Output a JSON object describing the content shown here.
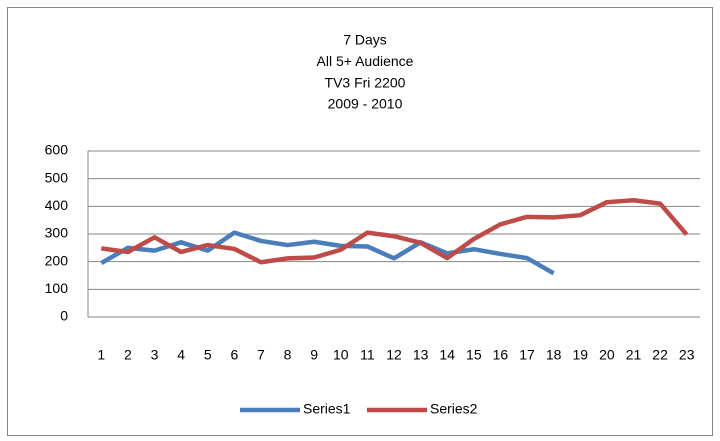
{
  "chart_data": {
    "type": "line",
    "title": [
      "7 Days",
      "All 5+ Audience",
      "TV3 Fri 2200",
      "2009 - 2010"
    ],
    "categories": [
      "1",
      "2",
      "3",
      "4",
      "5",
      "6",
      "7",
      "8",
      "9",
      "10",
      "11",
      "12",
      "13",
      "14",
      "15",
      "16",
      "17",
      "18",
      "19",
      "20",
      "21",
      "22",
      "23"
    ],
    "series": [
      {
        "name": "Series1",
        "color": "#4a7ebb",
        "values": [
          195,
          250,
          240,
          270,
          240,
          305,
          275,
          260,
          272,
          257,
          255,
          212,
          270,
          230,
          245,
          228,
          213,
          158,
          null,
          null,
          null,
          null,
          null
        ]
      },
      {
        "name": "Series2",
        "color": "#be4b48",
        "values": [
          248,
          235,
          288,
          235,
          260,
          246,
          198,
          212,
          215,
          243,
          305,
          292,
          268,
          213,
          282,
          335,
          362,
          360,
          368,
          415,
          422,
          410,
          298
        ]
      }
    ],
    "ylim": [
      0,
      600
    ],
    "yticks": [
      0,
      100,
      200,
      300,
      400,
      500,
      600
    ],
    "grid": true,
    "legend": "bottom"
  }
}
